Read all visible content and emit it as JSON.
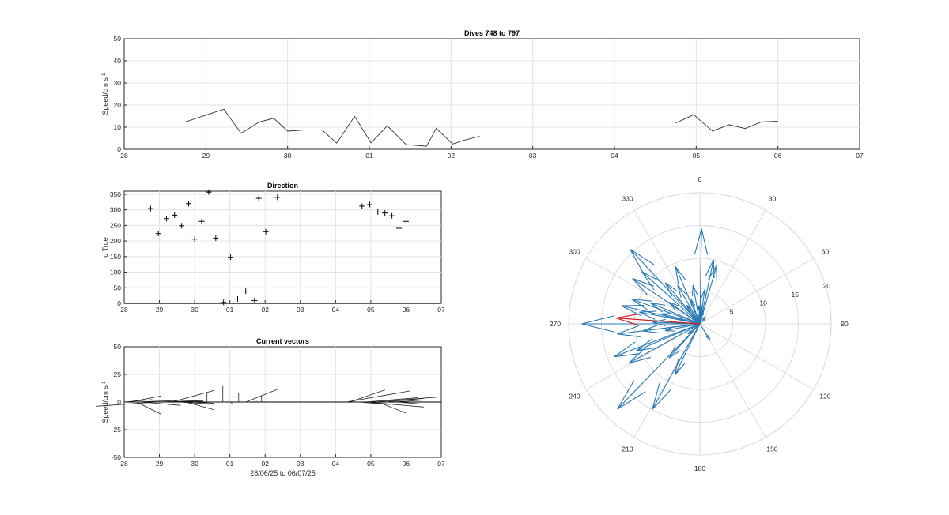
{
  "chart_data": [
    {
      "type": "line",
      "title": "Dives 748 to 797",
      "ylabel": "Speed/cm s",
      "ylabel_sup": "-1",
      "xlim": [
        0,
        9
      ],
      "ylim": [
        0,
        50
      ],
      "x_ticklabels": [
        "28",
        "29",
        "30",
        "01",
        "02",
        "03",
        "04",
        "05",
        "06",
        "07"
      ],
      "y_ticks": [
        0,
        10,
        20,
        30,
        40,
        50
      ],
      "grid": true,
      "segments": [
        {
          "x": [
            0.75,
            1.22,
            1.43,
            1.65,
            1.83,
            2.0,
            2.2,
            2.42,
            2.6,
            2.82,
            3.02,
            3.22,
            3.45,
            3.7,
            3.82,
            4.02,
            4.15,
            4.35
          ],
          "y": [
            12.4,
            18.1,
            7.2,
            12.3,
            14.0,
            8.2,
            8.7,
            8.8,
            2.8,
            14.9,
            2.9,
            10.6,
            2.1,
            1.4,
            9.5,
            2.4,
            4.0,
            5.9
          ]
        },
        {
          "x": [
            6.75,
            6.97,
            7.2,
            7.4,
            7.6,
            7.8,
            8.0
          ],
          "y": [
            11.9,
            15.6,
            8.2,
            11.1,
            9.4,
            12.4,
            12.7
          ]
        }
      ]
    },
    {
      "type": "scatter",
      "title": "Direction",
      "ylabel": "o True",
      "xlim": [
        0,
        9
      ],
      "ylim": [
        0,
        360
      ],
      "x_ticklabels": [
        "28",
        "29",
        "30",
        "01",
        "02",
        "03",
        "04",
        "05",
        "06",
        "07"
      ],
      "y_ticks": [
        0,
        50,
        100,
        150,
        200,
        250,
        300,
        350
      ],
      "grid": true,
      "points": {
        "x": [
          0.75,
          0.97,
          1.2,
          1.43,
          1.63,
          1.83,
          2.0,
          2.2,
          2.4,
          2.6,
          2.82,
          3.02,
          3.22,
          3.45,
          3.7,
          3.82,
          4.02,
          4.35,
          6.75,
          6.97,
          7.2,
          7.4,
          7.6,
          7.8,
          8.0
        ],
        "y": [
          304,
          224,
          272,
          283,
          249,
          320,
          206,
          263,
          357,
          209,
          3,
          148,
          14,
          39,
          9,
          337,
          230,
          340,
          312,
          317,
          293,
          290,
          281,
          241,
          263
        ]
      },
      "baseline_y": 0
    },
    {
      "type": "line",
      "title": "Current vectors",
      "ylabel": "Speed/cm s",
      "ylabel_sup": "-1",
      "xlabel": "28/06/25 to 06/07/25",
      "xlim": [
        0,
        9
      ],
      "ylim": [
        -50,
        50
      ],
      "x_ticklabels": [
        "28",
        "29",
        "30",
        "01",
        "02",
        "03",
        "04",
        "05",
        "06",
        "07"
      ],
      "y_ticks": [
        -50,
        -25,
        0,
        25,
        50
      ],
      "grid": true,
      "sticks": [
        {
          "x": 0.0,
          "u": 0.8,
          "v": 2.2
        },
        {
          "x": 0.15,
          "u": 0.9,
          "v": 5.5
        },
        {
          "x": 0.3,
          "u": 1.2,
          "v": 1.4
        },
        {
          "x": 0.35,
          "u": 0.7,
          "v": -11.0
        },
        {
          "x": 0.5,
          "u": 1.1,
          "v": -3.0
        },
        {
          "x": 0.75,
          "u": 1.5,
          "v": 0.8
        },
        {
          "x": 0.9,
          "u": -1.7,
          "v": -3.8
        },
        {
          "x": 1.05,
          "u": 1.2,
          "v": 1.6
        },
        {
          "x": 1.35,
          "u": 1.2,
          "v": 10.5
        },
        {
          "x": 1.55,
          "u": 1.0,
          "v": -2.0
        },
        {
          "x": 1.75,
          "u": 0.8,
          "v": -7.0
        },
        {
          "x": 1.95,
          "u": 0.6,
          "v": -1.2
        },
        {
          "x": 2.35,
          "u": 0.0,
          "v": 8.8
        },
        {
          "x": 2.55,
          "u": 0.0,
          "v": -3.5
        },
        {
          "x": 2.8,
          "u": 0.0,
          "v": 14.5
        },
        {
          "x": 3.05,
          "u": 0.0,
          "v": -2.0
        },
        {
          "x": 3.25,
          "u": 0.0,
          "v": 8.0
        },
        {
          "x": 3.45,
          "u": 0.9,
          "v": 11.5
        },
        {
          "x": 3.75,
          "u": 0.0,
          "v": 1.0
        },
        {
          "x": 3.9,
          "u": 0.0,
          "v": 6.0
        },
        {
          "x": 4.05,
          "u": 0.0,
          "v": -3.5
        },
        {
          "x": 4.25,
          "u": 0.0,
          "v": 6.0
        },
        {
          "x": 6.3,
          "u": 1.8,
          "v": 10.0
        },
        {
          "x": 6.4,
          "u": 1.0,
          "v": 11.0
        },
        {
          "x": 6.65,
          "u": 0.9,
          "v": -2.2
        },
        {
          "x": 6.85,
          "u": 1.5,
          "v": 4.0
        },
        {
          "x": 6.9,
          "u": 1.6,
          "v": -4.5
        },
        {
          "x": 7.1,
          "u": 1.8,
          "v": 4.5
        },
        {
          "x": 7.2,
          "u": 0.8,
          "v": -10.0
        },
        {
          "x": 7.4,
          "u": 1.1,
          "v": 3.3
        },
        {
          "x": 7.6,
          "u": 0.9,
          "v": 1.8
        },
        {
          "x": 7.75,
          "u": 0.6,
          "v": -1.5
        }
      ]
    },
    {
      "type": "polar",
      "theta_ticklabels": [
        "0",
        "30",
        "60",
        "90",
        "120",
        "150",
        "180",
        "210",
        "240",
        "270",
        "300",
        "330"
      ],
      "r_ticks": [
        5,
        10,
        15,
        20
      ],
      "rlim": [
        0,
        20
      ],
      "direction": "clockwise",
      "zero_location": "top",
      "vectors": [
        {
          "dir": 304,
          "speed": 12.4
        },
        {
          "dir": 224,
          "speed": 18.1
        },
        {
          "dir": 272,
          "speed": 7.2
        },
        {
          "dir": 283,
          "speed": 12.3
        },
        {
          "dir": 249,
          "speed": 14.0
        },
        {
          "dir": 320,
          "speed": 8.2
        },
        {
          "dir": 206,
          "speed": 8.7
        },
        {
          "dir": 263,
          "speed": 8.8
        },
        {
          "dir": 357,
          "speed": 2.8
        },
        {
          "dir": 209,
          "speed": 14.9
        },
        {
          "dir": 3,
          "speed": 2.9
        },
        {
          "dir": 148,
          "speed": 2.9
        },
        {
          "dir": 14,
          "speed": 2.1
        },
        {
          "dir": 39,
          "speed": 1.4
        },
        {
          "dir": 9,
          "speed": 1.0
        },
        {
          "dir": 337,
          "speed": 9.5
        },
        {
          "dir": 230,
          "speed": 2.4
        },
        {
          "dir": 340,
          "speed": 4.0
        },
        {
          "dir": 312,
          "speed": 11.9
        },
        {
          "dir": 317,
          "speed": 15.6
        },
        {
          "dir": 293,
          "speed": 8.2
        },
        {
          "dir": 290,
          "speed": 11.1
        },
        {
          "dir": 281,
          "speed": 9.4
        },
        {
          "dir": 241,
          "speed": 12.4
        },
        {
          "dir": 263,
          "speed": 12.7
        },
        {
          "dir": 1,
          "speed": 14.5
        },
        {
          "dir": 330,
          "speed": 6.8
        },
        {
          "dir": 305,
          "speed": 5.8
        },
        {
          "dir": 259,
          "speed": 5.4
        },
        {
          "dir": 12,
          "speed": 10.0
        },
        {
          "dir": 16,
          "speed": 9.3
        },
        {
          "dir": 270,
          "speed": 18.0
        },
        {
          "dir": 247,
          "speed": 10.5
        },
        {
          "dir": 222,
          "speed": 7.0
        },
        {
          "dir": 325,
          "speed": 3.5
        },
        {
          "dir": 350,
          "speed": 6.0
        },
        {
          "dir": 8,
          "speed": 5.3
        },
        {
          "dir": 285,
          "speed": 6.0
        }
      ],
      "mean_vector": {
        "dir": 274,
        "speed": 12.8
      },
      "vector_color": "#2878b4",
      "mean_color": "#cc2222"
    }
  ]
}
